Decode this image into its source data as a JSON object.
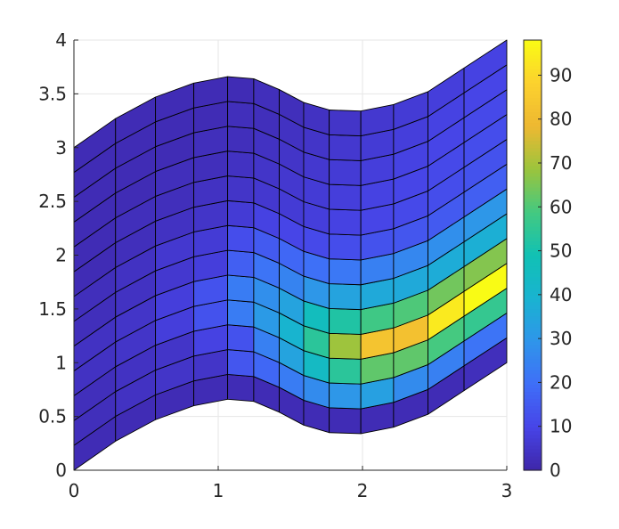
{
  "chart_data": {
    "type": "heatmap",
    "title": "",
    "xlabel": "",
    "ylabel": "",
    "xlim": [
      0,
      3
    ],
    "ylim": [
      0,
      4
    ],
    "grid": true,
    "x_ticks": [
      "0",
      "1",
      "2",
      "3"
    ],
    "y_ticks": [
      "0",
      "0.5",
      "1",
      "1.5",
      "2",
      "2.5",
      "3",
      "3.5",
      "4"
    ],
    "colorbar": {
      "colormap": "parula",
      "limits": [
        0,
        98
      ],
      "ticks": [
        "0",
        "10",
        "20",
        "30",
        "40",
        "50",
        "60",
        "70",
        "80",
        "90"
      ]
    },
    "mesh_x": [
      0,
      0.2885,
      0.5654,
      0.8308,
      1.0654,
      1.2462,
      1.4231,
      1.5923,
      1.7692,
      1.9885,
      2.2154,
      2.4538,
      2.7038,
      3.0
    ],
    "mesh_y_bottom": [
      0,
      0.27,
      0.47,
      0.6,
      0.66,
      0.64,
      0.54,
      0.42,
      0.35,
      0.34,
      0.4,
      0.52,
      0.74,
      1.0
    ],
    "mesh_y_top": [
      3.0,
      3.27,
      3.47,
      3.6,
      3.66,
      3.64,
      3.54,
      3.42,
      3.35,
      3.34,
      3.4,
      3.52,
      3.74,
      4.0
    ],
    "cell_values": [
      [
        2,
        2,
        2,
        2,
        2,
        2,
        2,
        2,
        2,
        2,
        2,
        2,
        3,
        3,
        3,
        3,
        3,
        3,
        4,
        3,
        2,
        2,
        2,
        2,
        2,
        2,
        2,
        2,
        2,
        2,
        2,
        2,
        2,
        2,
        2,
        2,
        2,
        2,
        2,
        2,
        2,
        2,
        2,
        2,
        2,
        2,
        2,
        2,
        2
      ],
      [
        3,
        4,
        5,
        5,
        14,
        18,
        23,
        27,
        30,
        33,
        27,
        24,
        21,
        18,
        16,
        14,
        12,
        9,
        5,
        4,
        3,
        3,
        3,
        3,
        3,
        3,
        3,
        3,
        3,
        3,
        3,
        3,
        3,
        3,
        3,
        3,
        3,
        3,
        3,
        3,
        3,
        3,
        3,
        3,
        3,
        3,
        3,
        3,
        3
      ],
      [
        3,
        4,
        5,
        9,
        13,
        24,
        34,
        44,
        54,
        62,
        62,
        59,
        56,
        62,
        67,
        72,
        78,
        83,
        83,
        82,
        80,
        80,
        78,
        77,
        75,
        73,
        70,
        70,
        68,
        66,
        65,
        64,
        64,
        65,
        66,
        66,
        66,
        66,
        66,
        66,
        66,
        66,
        66,
        66,
        66,
        66,
        66,
        66,
        66
      ],
      [
        4,
        5,
        8,
        13,
        23,
        31,
        40,
        54,
        69,
        83,
        82,
        94,
        98,
        96,
        93,
        90,
        87,
        84,
        85,
        87,
        88,
        90,
        92,
        94,
        96,
        98,
        97,
        96,
        94,
        92,
        90,
        88,
        85,
        82,
        79,
        75,
        70,
        65,
        60,
        56,
        53,
        52,
        52,
        52,
        52,
        52,
        52,
        52,
        52
      ],
      [
        4,
        5,
        8,
        13,
        23,
        28,
        34,
        46,
        52,
        58,
        60,
        64,
        66,
        75,
        84,
        92,
        92,
        92,
        90,
        88,
        86,
        85,
        84,
        82,
        80,
        78,
        76,
        74,
        72,
        71,
        70,
        70,
        70,
        70,
        70,
        70,
        70,
        70,
        70,
        70,
        70,
        70,
        70,
        70,
        70,
        70,
        70,
        70,
        70
      ],
      [
        3,
        4,
        6,
        8,
        16,
        21,
        25,
        30,
        34,
        36,
        36,
        37,
        38,
        39,
        40,
        41,
        42,
        43,
        45,
        46,
        47,
        48,
        49,
        50,
        51,
        52,
        53,
        54,
        55,
        56,
        57,
        58,
        59,
        60,
        61,
        62,
        63,
        64,
        65,
        66,
        67,
        68,
        69,
        70,
        71,
        72,
        73,
        74,
        75
      ],
      [
        3,
        4,
        6,
        7,
        12,
        15,
        18,
        20,
        22,
        24,
        26,
        28,
        30,
        32,
        34,
        36,
        38,
        40,
        42,
        44,
        46,
        48,
        50,
        52,
        54,
        56,
        58,
        60,
        62,
        64,
        66,
        68,
        70,
        72,
        74,
        76,
        78,
        80,
        82,
        84,
        86,
        88,
        90,
        92,
        94,
        96,
        98,
        98,
        98
      ],
      [
        2,
        3,
        4,
        5,
        7,
        9,
        10,
        11,
        12,
        13,
        14,
        15,
        16,
        17,
        18,
        19,
        20,
        21,
        22,
        23,
        24,
        25,
        26,
        27,
        28,
        29,
        30,
        31,
        32,
        33,
        34,
        35,
        36,
        37,
        38,
        39,
        40,
        41,
        42,
        43,
        44,
        45,
        46,
        47,
        48,
        49,
        50,
        51,
        52
      ],
      [
        2,
        3,
        3,
        4,
        5,
        6,
        7,
        8,
        9,
        10,
        11,
        12,
        13,
        14,
        15,
        16,
        17,
        18,
        19,
        20,
        21,
        22,
        23,
        24,
        25,
        26,
        27,
        28,
        29,
        30,
        31,
        32,
        33,
        34,
        35,
        36,
        37,
        38,
        39,
        40,
        41,
        42,
        43,
        44,
        45,
        46,
        47,
        48,
        49
      ],
      [
        2,
        2,
        3,
        3,
        4,
        5,
        6,
        7,
        8,
        9,
        10,
        11,
        12,
        13,
        14,
        15,
        16,
        17,
        18,
        19,
        20,
        21,
        22,
        23,
        24,
        25,
        26,
        27,
        28,
        29,
        30,
        31,
        32,
        33,
        34,
        35,
        36,
        37,
        38,
        39,
        40,
        41,
        42,
        43,
        44,
        45,
        46,
        47,
        48
      ],
      [
        2,
        2,
        2,
        3,
        3,
        4,
        5,
        6,
        7,
        8,
        9,
        10,
        11,
        12,
        13,
        14,
        15,
        16,
        17,
        18,
        19,
        20,
        21,
        22,
        23,
        24,
        25,
        26,
        27,
        28,
        29,
        30,
        31,
        32,
        33,
        34,
        35,
        36,
        37,
        38,
        39,
        40,
        41,
        42,
        43,
        44,
        45,
        46,
        47
      ],
      [
        2,
        2,
        2,
        2,
        3,
        3,
        4,
        5,
        6,
        7,
        8,
        9,
        10,
        11,
        12,
        13,
        14,
        15,
        16,
        17,
        18,
        19,
        20,
        21,
        22,
        23,
        24,
        25,
        26,
        27,
        28,
        29,
        30,
        31,
        32,
        33,
        34,
        35,
        36,
        37,
        38,
        39,
        40,
        41,
        42,
        43,
        44,
        45,
        46
      ],
      [
        2,
        2,
        2,
        2,
        2,
        3,
        3,
        4,
        5,
        6,
        7,
        8,
        9,
        10,
        11,
        12,
        13,
        14,
        15,
        16,
        17,
        18,
        19,
        20,
        21,
        22,
        23,
        24,
        25,
        26,
        27,
        28,
        29,
        30,
        31,
        32,
        33,
        34,
        35,
        36,
        37,
        38,
        39,
        40,
        41,
        42,
        43,
        44,
        45
      ]
    ]
  },
  "colormap_stops": [
    [
      0.0,
      "#3e26a8"
    ],
    [
      0.1,
      "#4744e7"
    ],
    [
      0.2,
      "#3f6ef8"
    ],
    [
      0.3,
      "#2f95ea"
    ],
    [
      0.4,
      "#19b3d1"
    ],
    [
      0.5,
      "#11c1b4"
    ],
    [
      0.6,
      "#43c981"
    ],
    [
      0.7,
      "#9bc43d"
    ],
    [
      0.8,
      "#edb831"
    ],
    [
      0.9,
      "#fcd12e"
    ],
    [
      1.0,
      "#f9fb15"
    ]
  ]
}
